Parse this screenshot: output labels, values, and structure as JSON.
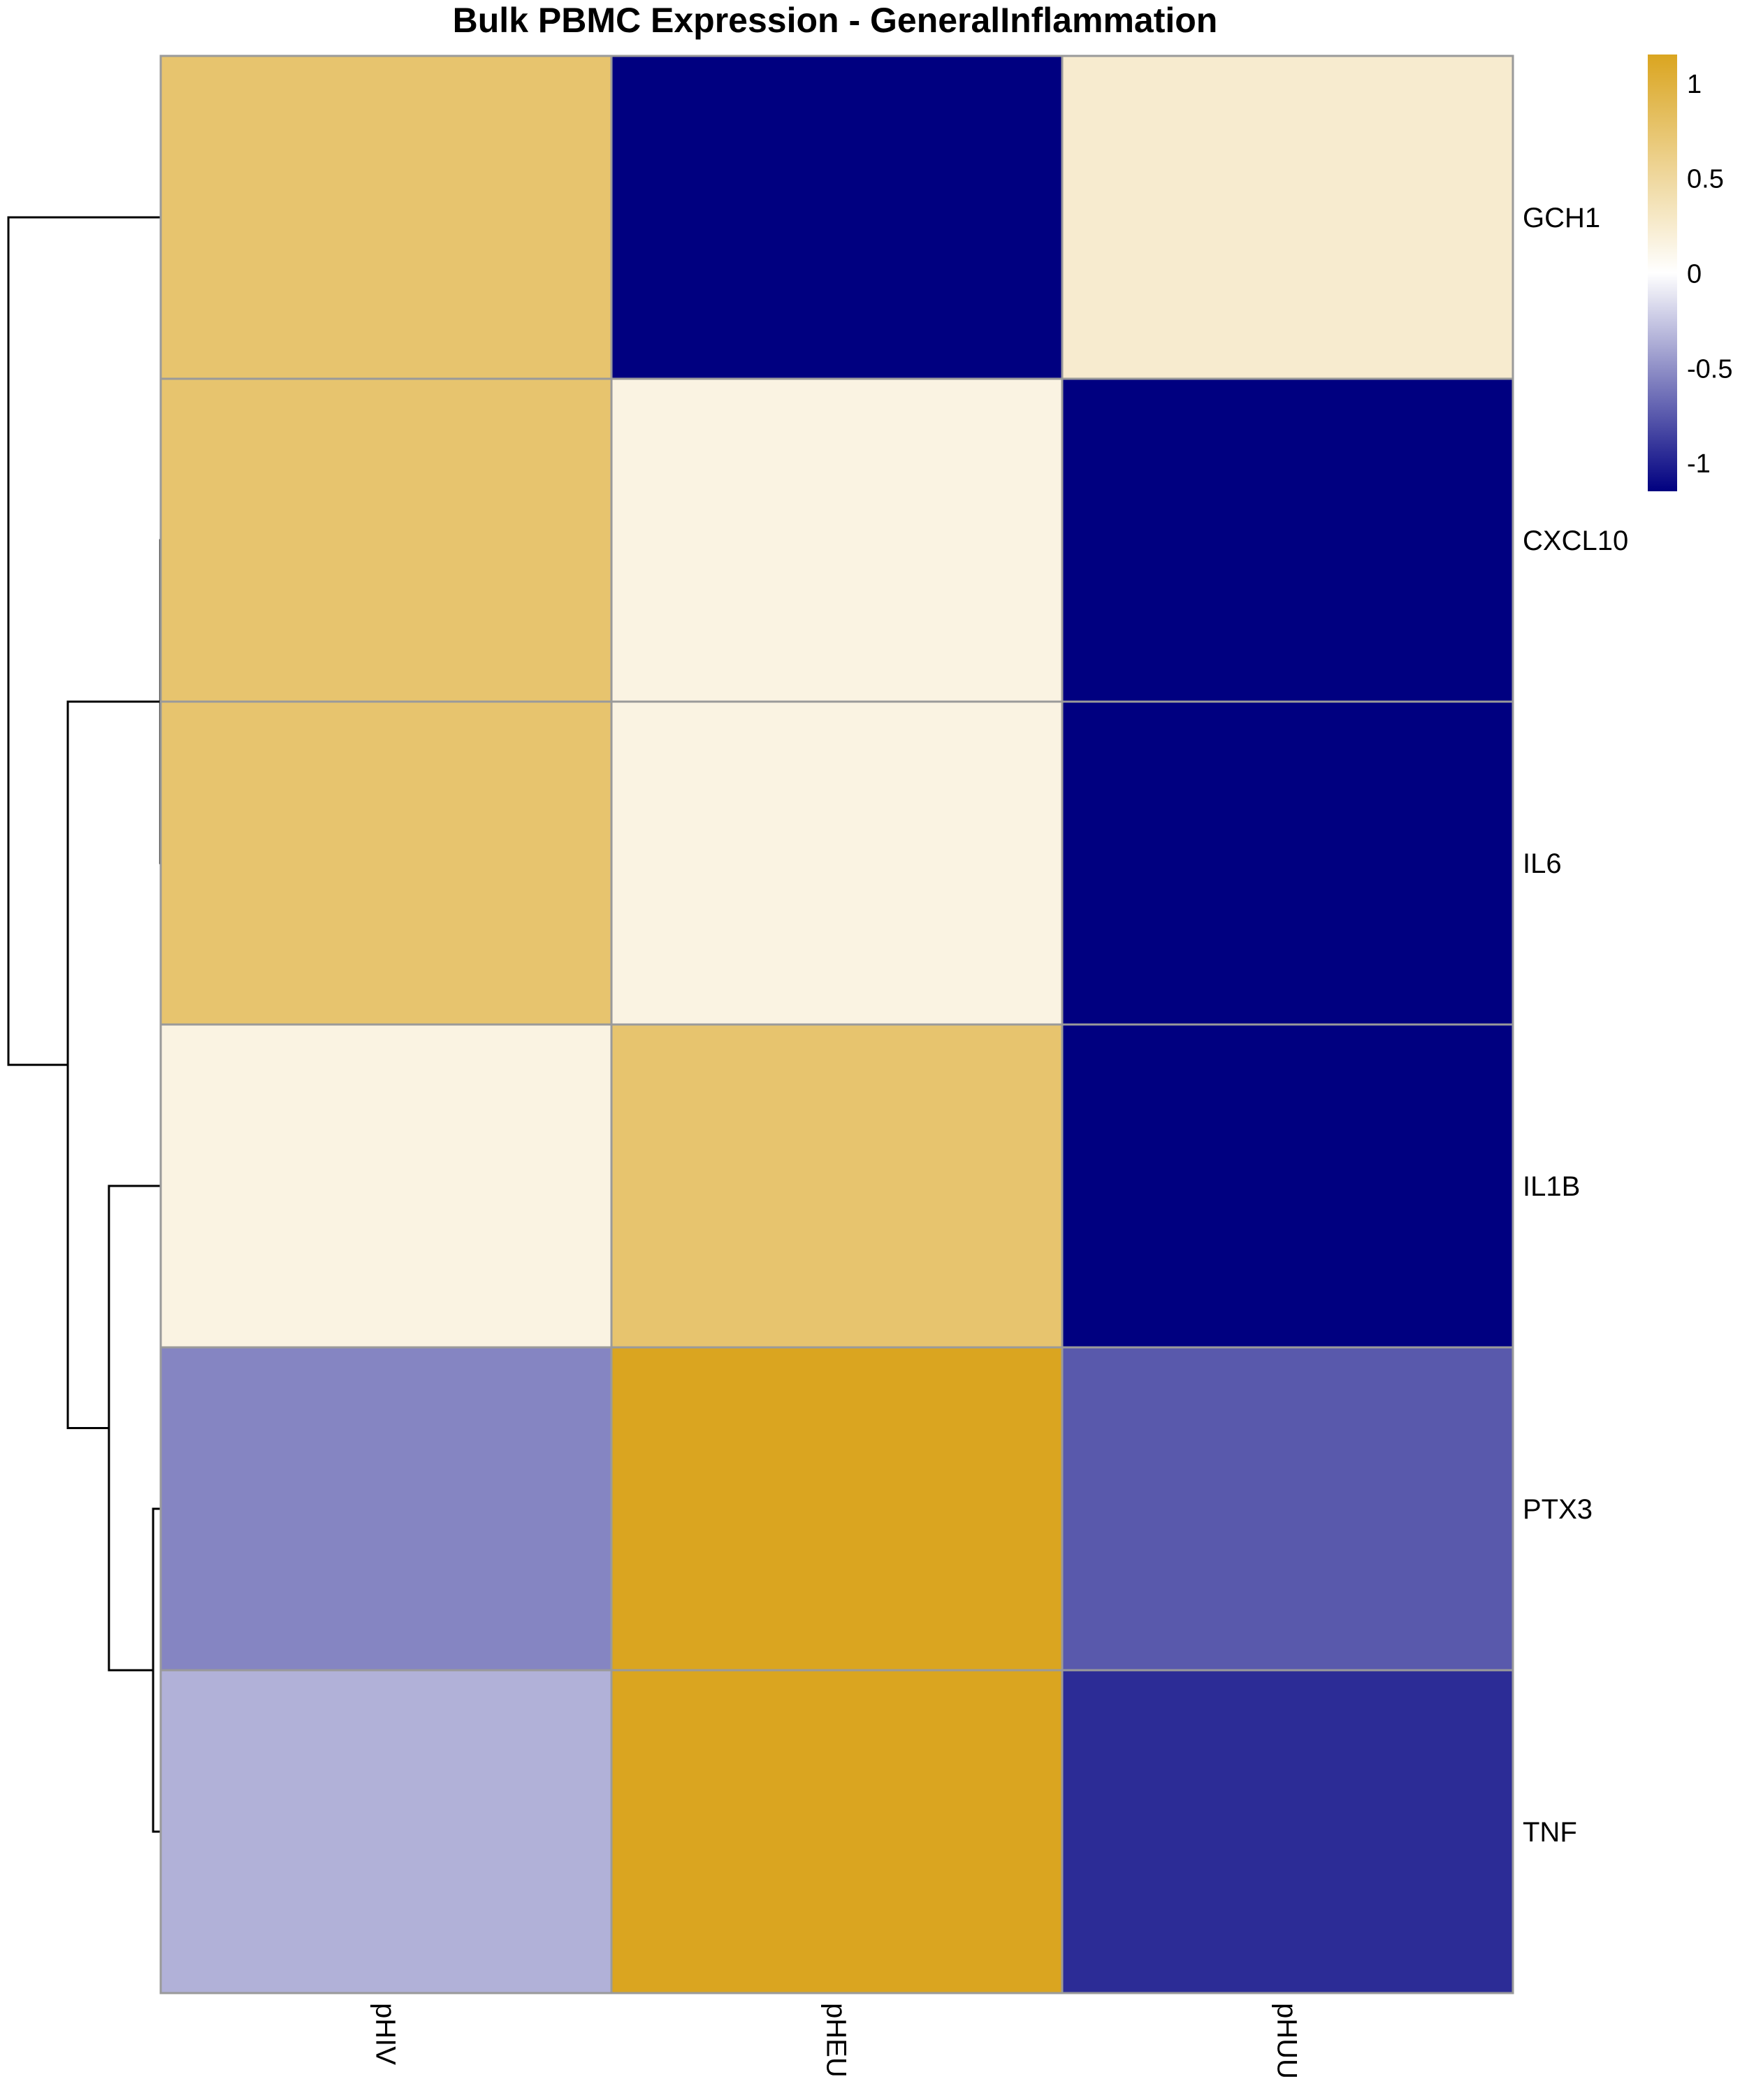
{
  "chart_data": {
    "type": "heatmap",
    "title": "Bulk PBMC Expression - GeneralInflammation",
    "columns": [
      "pHIV",
      "pHEU",
      "pHUU"
    ],
    "rows": [
      "GCH1",
      "CXCL10",
      "IL6",
      "IL1B",
      "PTX3",
      "TNF"
    ],
    "values": [
      [
        0.75,
        -1.15,
        0.25
      ],
      [
        0.75,
        0.15,
        -1.15
      ],
      [
        0.75,
        0.15,
        -1.15
      ],
      [
        0.15,
        0.75,
        -1.15
      ],
      [
        -0.55,
        1.15,
        -0.75
      ],
      [
        -0.35,
        1.15,
        -0.95
      ]
    ],
    "color_scale": {
      "min": -1.15,
      "max": 1.15,
      "low_color": "#000080",
      "mid_color": "#ffffff",
      "high_color": "#daa520",
      "ticks": [
        {
          "value": 1,
          "label": "1"
        },
        {
          "value": 0.5,
          "label": "0.5"
        },
        {
          "value": 0,
          "label": "0"
        },
        {
          "value": -0.5,
          "label": "-0.5"
        },
        {
          "value": -1,
          "label": "-1"
        }
      ]
    },
    "row_dendrogram": {
      "merges": [
        [
          3,
          4
        ],
        [
          1,
          2
        ],
        [
          0,
          3
        ],
        [
          1,
          3
        ],
        [
          0,
          1
        ]
      ]
    },
    "legend_position": "top-right"
  }
}
